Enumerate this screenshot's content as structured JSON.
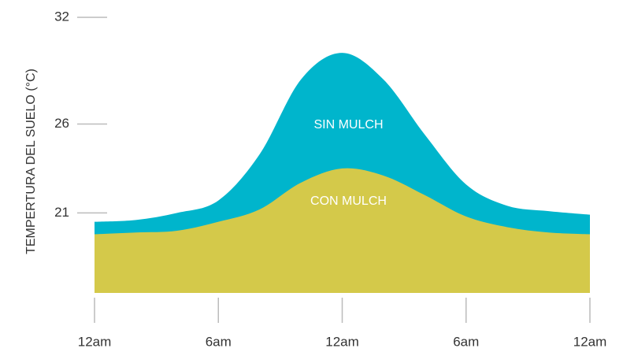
{
  "chart_data": {
    "type": "area",
    "y_label": "TEMPERTURA DEL SUELO (°C)",
    "x": [
      0,
      2,
      4,
      6,
      8,
      10,
      12,
      14,
      16,
      18,
      20,
      22,
      24
    ],
    "xlim": [
      0,
      24
    ],
    "xticks": [
      {
        "value": 0,
        "label": "12am"
      },
      {
        "value": 6,
        "label": "6am"
      },
      {
        "value": 12,
        "label": "12am"
      },
      {
        "value": 18,
        "label": "6am"
      },
      {
        "value": 24,
        "label": "12am"
      }
    ],
    "ylim": [
      16.5,
      32
    ],
    "yticks": [
      32,
      26,
      21
    ],
    "series": [
      {
        "name": "SIN MULCH",
        "color": "#00b5cc",
        "values": [
          20.5,
          20.6,
          21.0,
          21.7,
          24.3,
          28.5,
          30.0,
          28.5,
          25.4,
          22.6,
          21.4,
          21.1,
          20.9
        ]
      },
      {
        "name": "CON MULCH",
        "color": "#d4c94a",
        "values": [
          19.8,
          19.9,
          20.0,
          20.5,
          21.2,
          22.7,
          23.5,
          23.1,
          22.0,
          20.8,
          20.2,
          19.9,
          19.8
        ]
      }
    ]
  }
}
